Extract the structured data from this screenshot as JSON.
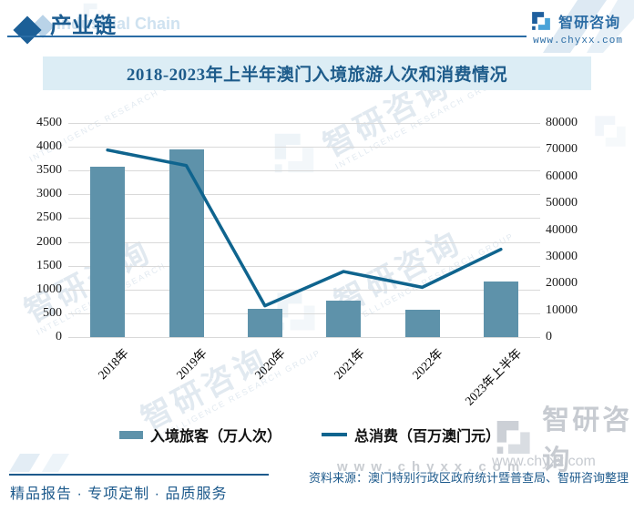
{
  "header": {
    "section_title": "产业链",
    "section_title_en": "Industrial Chain",
    "brand": "智研咨询",
    "site": "www.chyxx.com"
  },
  "chart_title": "2018-2023年上半年澳门入境旅游人次和消费情况",
  "chart_data": {
    "type": "combo",
    "categories": [
      "2018年",
      "2019年",
      "2020年",
      "2021年",
      "2022年",
      "2023年上半年"
    ],
    "series": [
      {
        "name": "入境旅客（万人次）",
        "type": "bar",
        "axis": "left",
        "color": "#5e92aa",
        "values": [
          3580,
          3941,
          590,
          771,
          570,
          1164
        ]
      },
      {
        "name": "总消费（百万澳门元）",
        "type": "line",
        "axis": "right",
        "color": "#0f648e",
        "values": [
          69900,
          64100,
          11700,
          24500,
          18600,
          32800
        ]
      }
    ],
    "left_axis": {
      "min": 0,
      "max": 4500,
      "step": 500,
      "ticks": [
        "4500",
        "4000",
        "3500",
        "3000",
        "2500",
        "2000",
        "1500",
        "1000",
        "500",
        "0"
      ]
    },
    "right_axis": {
      "min": 0,
      "max": 80000,
      "step": 10000,
      "ticks": [
        "80000",
        "70000",
        "60000",
        "50000",
        "40000",
        "30000",
        "20000",
        "10000",
        "0"
      ]
    },
    "grid": "horizontal gridlines on",
    "legend_position": "bottom center"
  },
  "footer": {
    "source": "资料来源：澳门特别行政区政府统计暨普查局、智研咨询整理",
    "tagline": "精品报告 · 专项定制 · 品质服务"
  },
  "watermark": {
    "brand": "智研咨询",
    "subtitle": "INTELLIGENCE RESEARCH GROUP",
    "site": "www.chyxx.com"
  },
  "colors": {
    "accent_dark_blue": "#1d5a8c",
    "bar": "#5e92aa",
    "line": "#0f648e",
    "title_band_bg": "#dcedf5",
    "gridline": "#d9d9d9"
  }
}
